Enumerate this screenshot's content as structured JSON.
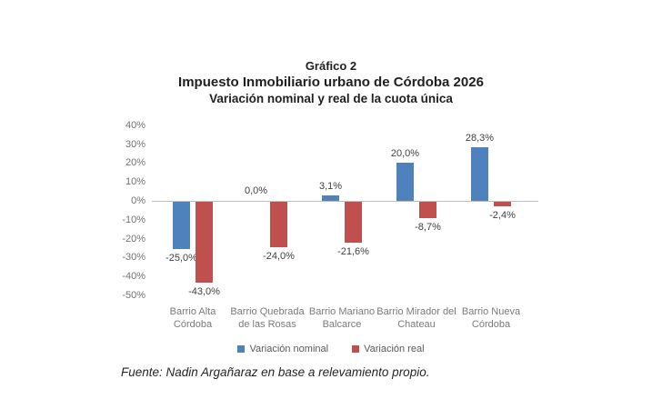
{
  "title": {
    "line1": "Gráfico 2",
    "line2": "Impuesto Inmobiliario urbano de Córdoba 2026",
    "line3": "Variación nominal y real de la cuota única"
  },
  "source_note": "Fuente: Nadin Argañaraz en base a relevamiento propio.",
  "chart_data": {
    "type": "bar",
    "title": "Gráfico 2",
    "subtitle": "Impuesto Inmobiliario urbano de Córdoba 2026 — Variación nominal y real de la cuota única",
    "categories": [
      "Barrio Alta Córdoba",
      "Barrio Quebrada de las Rosas",
      "Barrio Mariano Balcarce",
      "Barrio Mirador del Chateau",
      "Barrio Nueva Córdoba"
    ],
    "series": [
      {
        "name": "Variación nominal",
        "color": "#4F81BD",
        "values": [
          -25.0,
          0.0,
          3.1,
          20.0,
          28.3
        ],
        "labels": [
          "-25,0%",
          "0,0%",
          "3,1%",
          "20,0%",
          "28,3%"
        ]
      },
      {
        "name": "Variación real",
        "color": "#C0504D",
        "values": [
          -43.0,
          -24.0,
          -21.6,
          -8.7,
          -2.4
        ],
        "labels": [
          "-43,0%",
          "-24,0%",
          "-21,6%",
          "-8,7%",
          "-2,4%"
        ]
      }
    ],
    "y_axis": {
      "min": -50,
      "max": 40,
      "step": 10,
      "tick_labels": [
        "40%",
        "30%",
        "20%",
        "10%",
        "0%",
        "-10%",
        "-20%",
        "-30%",
        "-40%",
        "-50%"
      ],
      "format": "percent"
    },
    "grid": false,
    "legend_position": "bottom",
    "xlabel": "",
    "ylabel": ""
  }
}
